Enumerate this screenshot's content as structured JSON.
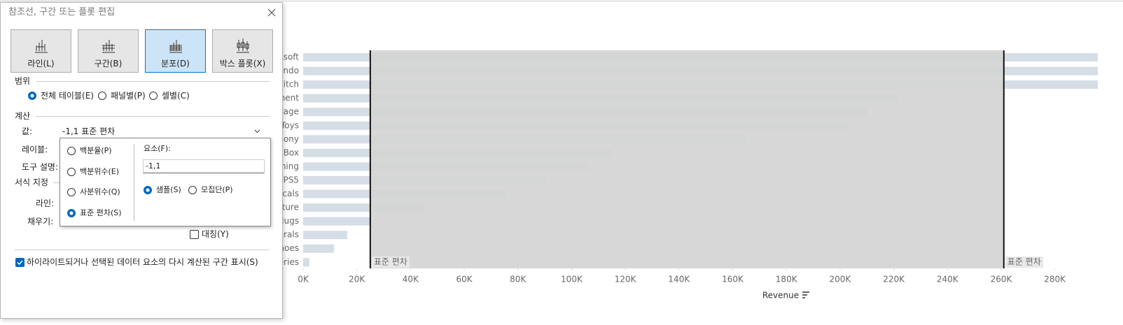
{
  "dialog": {
    "title": "참조선, 구간 또는 플롯 편집",
    "plot_types": [
      "라인(L)",
      "구간(B)",
      "분포(D)",
      "박스 플롯(X)"
    ],
    "scope": {
      "label": "범위",
      "options": [
        "전체 테이블(E)",
        "패널별(P)",
        "셀별(C)"
      ]
    },
    "calculation": {
      "label": "계산",
      "value_label": "값:",
      "value": "-1,1 표준 편차",
      "label_label": "레이블:",
      "tooltip_label": "도구 설명:"
    },
    "formatting": {
      "label": "서식 지정",
      "line_label": "라인:",
      "fill_label": "채우기:",
      "symmetric": "대칭(Y)"
    },
    "highlight_option": "하이라이트되거나 선택된 데이터 요소의 다시 계산된 구간 표시(S)",
    "popup": {
      "computations": [
        "백분율(P)",
        "백분위수(E)",
        "사분위수(Q)",
        "표준 편차(S)"
      ],
      "factor_label": "요소(F):",
      "factor": "-1,1",
      "sample_options": [
        "샘플(S)",
        "모집단(P)"
      ]
    }
  },
  "chart_data": {
    "type": "bar",
    "orientation": "horizontal",
    "x_label": "Revenue",
    "color": "#d5dde6",
    "categories": [
      "soft",
      "endo",
      "witch",
      "ment",
      "tage",
      "Toys",
      "Sony",
      "XBox",
      "hing",
      "PS5",
      "ecals",
      "ture",
      "Mugs",
      "erals",
      "hoes",
      "eries"
    ],
    "values": [
      296000,
      296000,
      296000,
      221600,
      210000,
      203000,
      165000,
      115000,
      106600,
      90500,
      75600,
      45400,
      24800,
      16400,
      11500,
      2300
    ],
    "xlim": [
      0,
      296000
    ],
    "xticks": [
      {
        "value": 0,
        "label": "0K"
      },
      {
        "value": 20000,
        "label": "20K"
      },
      {
        "value": 40000,
        "label": "40K"
      },
      {
        "value": 60000,
        "label": "60K"
      },
      {
        "value": 80000,
        "label": "80K"
      },
      {
        "value": 100000,
        "label": "100K"
      },
      {
        "value": 120000,
        "label": "120K"
      },
      {
        "value": 140000,
        "label": "140K"
      },
      {
        "value": 160000,
        "label": "160K"
      },
      {
        "value": 180000,
        "label": "180K"
      },
      {
        "value": 200000,
        "label": "200K"
      },
      {
        "value": 220000,
        "label": "220K"
      },
      {
        "value": 240000,
        "label": "240K"
      },
      {
        "value": 260000,
        "label": "260K"
      },
      {
        "value": 280000,
        "label": "280K"
      }
    ],
    "reference_band": {
      "values": [
        25000,
        261000
      ],
      "labels": [
        "표준 편차",
        "표준 편차"
      ],
      "color": "#d4d4d4"
    }
  }
}
